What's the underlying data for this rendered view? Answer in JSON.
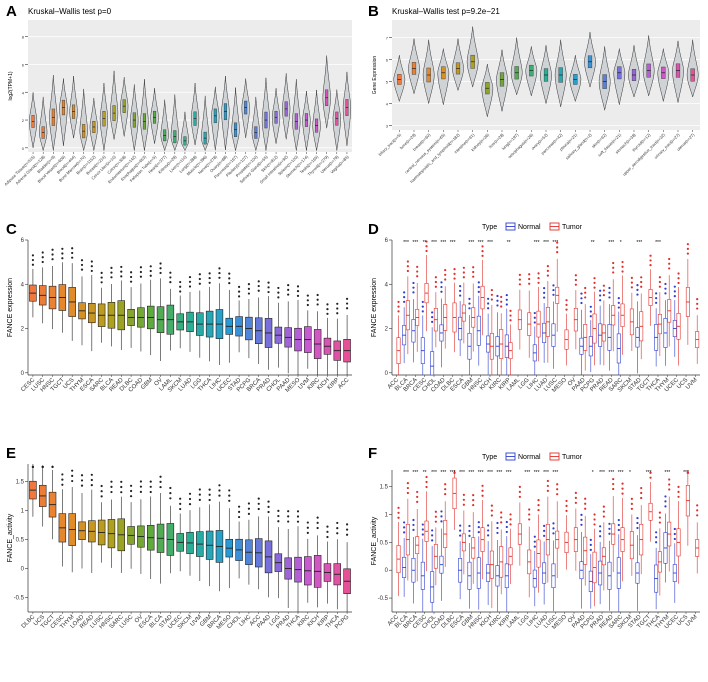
{
  "colors": {
    "normal": "#2f3fd0",
    "tumor": "#e0302a"
  },
  "chart_data": [
    {
      "panel": "A",
      "type": "violin",
      "title": "Kruskal–Wallis test p=0",
      "ylabel": "log2(TPM+1)",
      "ylim": [
        -0.3,
        9.2
      ],
      "yticks": [
        0,
        2,
        4,
        6,
        8
      ],
      "categories": [
        "Adipose Tissue(n=515)",
        "Adrenal Gland(n=128)",
        "Bladder(n=9)",
        "Blood Vessel(n=606)",
        "Blood(n=444)",
        "Bone Marrow(n=70)",
        "Brain(n=1152)",
        "Breast(n=214)",
        "Cervix Uteri(n=10)",
        "Colon(n=308)",
        "Endometrium(n=142)",
        "Esophagus(n=653)",
        "Fallopian Tube(n=5)",
        "Heart(n=377)",
        "Kidney(n=28)",
        "Liver(n=110)",
        "Lung(n=288)",
        "Muscle(n=396)",
        "Nerve(n=278)",
        "Ovary(n=88)",
        "Pancreas(n=167)",
        "Pituitary(n=107)",
        "Prostate(n=100)",
        "Salivary Gland(n=55)",
        "Skin(n=812)",
        "Small Intestine(n=92)",
        "Spleen(n=100)",
        "Stomach(n=174)",
        "Testis(n=165)",
        "Thyroid(n=279)",
        "Uterus(n=78)",
        "Vagina(n=85)"
      ],
      "values": [
        1.9,
        1.1,
        2.2,
        2.9,
        2.6,
        1.2,
        1.5,
        2.1,
        2.5,
        3.0,
        2.0,
        1.9,
        2.2,
        0.9,
        0.8,
        0.5,
        2.1,
        0.7,
        2.3,
        2.6,
        1.3,
        2.9,
        1.1,
        2.0,
        2.2,
        2.8,
        1.9,
        2.0,
        1.6,
        3.6,
        2.1,
        2.9
      ]
    },
    {
      "panel": "B",
      "type": "violin",
      "title": "Kruskal–Wallis test p=9.2e−21",
      "ylabel": "Gene Expression",
      "ylim": [
        2.8,
        7.8
      ],
      "yticks": [
        3,
        4,
        5,
        6,
        7
      ],
      "categories": [
        "biliary_tract(n=5)",
        "bone(n=29)",
        "breast(n=60)",
        "central_nervous_system(n=65)",
        "haematopoietic_and_lymphoid(n=182)",
        "intestine(n=61)",
        "kidney(n=36)",
        "liver(n=28)",
        "lung(n=197)",
        "oesophagus(n=26)",
        "ovary(n=52)",
        "pancreas(n=42)",
        "pleura(n=21)",
        "salivary_gland(n=2)",
        "skin(n=62)",
        "soft_tissue(n=21)",
        "stomach(n=38)",
        "thyroid(n=12)",
        "upper_aerodigestive_tract(n=32)",
        "urinary_tract(n=27)",
        "uterus(n=27)"
      ],
      "values": [
        5.1,
        5.6,
        5.3,
        5.4,
        5.6,
        5.9,
        4.7,
        5.1,
        5.4,
        5.5,
        5.3,
        5.3,
        5.1,
        5.9,
        5.0,
        5.4,
        5.3,
        5.5,
        5.4,
        5.5,
        5.3
      ]
    },
    {
      "panel": "C",
      "type": "boxplot",
      "ylabel": "FANCE expression",
      "ylim": [
        -0.1,
        6.0
      ],
      "yticks": [
        0,
        2,
        4,
        6
      ],
      "categories": [
        "CESC",
        "LUSC",
        "HNSC",
        "TGCT",
        "UCS",
        "THYM",
        "ESCA",
        "SARC",
        "BLCA",
        "READ",
        "DLBC",
        "COAD",
        "GBM",
        "OV",
        "LAML",
        "SKCM",
        "LUAD",
        "LGG",
        "THCA",
        "LIHC",
        "UCEC",
        "STAD",
        "PCPG",
        "BRCA",
        "PRAD",
        "CHOL",
        "PAAD",
        "MESO",
        "UVM",
        "KIRC",
        "KICH",
        "KIRP",
        "ACC"
      ],
      "values": [
        3.6,
        3.5,
        3.4,
        3.4,
        3.2,
        2.8,
        2.7,
        2.6,
        2.6,
        2.6,
        2.5,
        2.5,
        2.5,
        2.4,
        2.4,
        2.3,
        2.3,
        2.2,
        2.2,
        2.2,
        2.1,
        2.1,
        2.0,
        1.9,
        1.8,
        1.7,
        1.6,
        1.5,
        1.5,
        1.3,
        1.2,
        1.0,
        1.0
      ]
    },
    {
      "panel": "D",
      "type": "grouped_boxplot",
      "ylabel": "FANCE expression",
      "ylim": [
        -0.1,
        6.0
      ],
      "yticks": [
        0,
        2,
        4,
        6
      ],
      "legend_title": "Type",
      "legend": [
        "Normal",
        "Tumor"
      ],
      "categories": [
        "ACC",
        "BLCA",
        "BRCA",
        "CESC",
        "CHOL",
        "COAD",
        "DLBC",
        "ESCA",
        "GBM",
        "HNSC",
        "KICH",
        "KIRC",
        "KIRP",
        "LAML",
        "LGG",
        "LIHC",
        "LUAD",
        "LUSC",
        "MESO",
        "OV",
        "PAAD",
        "PCPG",
        "PRAD",
        "READ",
        "SARC",
        "SKCM",
        "STAD",
        "TGCT",
        "THCA",
        "THYM",
        "UCEC",
        "UCS",
        "UVM"
      ],
      "significance": [
        "",
        "***",
        "***",
        "**",
        "***",
        "***",
        "***",
        "",
        "***",
        "***",
        "***",
        "",
        "**",
        "",
        "",
        "***",
        "***",
        "***",
        "",
        "",
        "",
        "**",
        "",
        "***",
        "*",
        "",
        "***",
        "",
        "***",
        "",
        "",
        "",
        ""
      ],
      "series": [
        {
          "name": "Normal",
          "values": [
            null,
            1.7,
            1.9,
            1.0,
            0.3,
            1.8,
            null,
            2.0,
            1.2,
            1.9,
            1.3,
            1.2,
            1.2,
            null,
            null,
            0.9,
            1.8,
            1.7,
            null,
            null,
            1.2,
            1.2,
            1.7,
            1.6,
            1.1,
            null,
            1.6,
            null,
            1.6,
            1.8,
            2.0,
            null,
            null
          ]
        },
        {
          "name": "Tumor",
          "values": [
            1.0,
            2.6,
            2.5,
            3.6,
            2.4,
            2.5,
            2.5,
            2.7,
            2.5,
            3.4,
            1.2,
            1.3,
            1.0,
            2.4,
            2.2,
            2.2,
            2.3,
            3.5,
            1.5,
            2.4,
            1.6,
            2.0,
            1.8,
            2.6,
            2.6,
            2.3,
            2.1,
            3.4,
            2.2,
            2.8,
            2.1,
            3.2,
            1.5
          ]
        }
      ]
    },
    {
      "panel": "E",
      "type": "boxplot",
      "ylabel": "FANCE_activity",
      "ylim": [
        -0.75,
        1.8
      ],
      "yticks": [
        -0.5,
        0.0,
        0.5,
        1.0,
        1.5
      ],
      "categories": [
        "DLBC",
        "UCS",
        "TGCT",
        "CESC",
        "THYM",
        "LOAD",
        "READ",
        "LUSC",
        "HNSC",
        "SARC",
        "LUSC",
        "OV",
        "ESCA",
        "BLCA",
        "STAD",
        "UCEC",
        "SKCM",
        "UVM",
        "GBM",
        "BRCA",
        "MESO",
        "CHOL",
        "LIHC",
        "ACC",
        "PAAD",
        "LGG",
        "PRAD",
        "THCA",
        "KIRC",
        "KICH",
        "KIRP",
        "THCA",
        "PCPG"
      ],
      "values": [
        1.35,
        1.25,
        1.1,
        0.7,
        0.67,
        0.65,
        0.64,
        0.62,
        0.6,
        0.58,
        0.57,
        0.55,
        0.53,
        0.52,
        0.5,
        0.45,
        0.44,
        0.42,
        0.4,
        0.38,
        0.35,
        0.32,
        0.28,
        0.27,
        0.2,
        0.1,
        0.0,
        -0.02,
        -0.04,
        -0.05,
        -0.07,
        -0.1,
        -0.22
      ]
    },
    {
      "panel": "F",
      "type": "grouped_boxplot",
      "ylabel": "FANCE_activity",
      "ylim": [
        -0.75,
        1.8
      ],
      "yticks": [
        -0.5,
        0.0,
        0.5,
        1.0,
        1.5
      ],
      "legend_title": "Type",
      "legend": [
        "Normal",
        "Tumor"
      ],
      "categories": [
        "ACC",
        "BLCA",
        "BRCA",
        "CESC",
        "CHOL",
        "COAD",
        "DLBC",
        "ESCA",
        "GBM",
        "HNSC",
        "KICH",
        "KIRC",
        "KIRP",
        "LAML",
        "LGG",
        "LIHC",
        "LUAD",
        "LUSC",
        "MESO",
        "OV",
        "PAAD",
        "PCPG",
        "PRAD",
        "READ",
        "SARC",
        "SKCM",
        "STAD",
        "TGCT",
        "THCA",
        "THYM",
        "UCEC",
        "UCS",
        "UVM"
      ],
      "significance": [
        "",
        "***",
        "***",
        "**",
        "***",
        "***",
        "***",
        "***",
        "***",
        "***",
        "***",
        "***",
        "***",
        "",
        "***",
        "***",
        "***",
        "***",
        "",
        "",
        "",
        "*",
        "***",
        "***",
        "***",
        "*",
        "",
        "***",
        "",
        "***",
        "",
        "***",
        ""
      ],
      "series": [
        {
          "name": "Normal",
          "values": [
            null,
            0.05,
            0.0,
            -0.1,
            -0.3,
            0.1,
            null,
            0.0,
            -0.1,
            -0.05,
            -0.05,
            -0.1,
            -0.1,
            null,
            null,
            -0.15,
            -0.05,
            -0.1,
            null,
            null,
            0.0,
            -0.2,
            -0.05,
            -0.1,
            -0.05,
            null,
            -0.05,
            null,
            -0.15,
            0.4,
            -0.05,
            null,
            null
          ]
        },
        {
          "name": "Tumor",
          "values": [
            0.2,
            0.55,
            0.45,
            0.7,
            0.25,
            0.65,
            1.38,
            0.5,
            0.4,
            0.55,
            0.1,
            0.15,
            0.25,
            0.65,
            0.15,
            0.3,
            0.55,
            0.55,
            0.5,
            0.55,
            0.35,
            0.05,
            0.25,
            0.65,
            0.55,
            0.45,
            0.55,
            1.05,
            0.15,
            0.65,
            0.5,
            1.25,
            0.4
          ]
        }
      ]
    }
  ]
}
